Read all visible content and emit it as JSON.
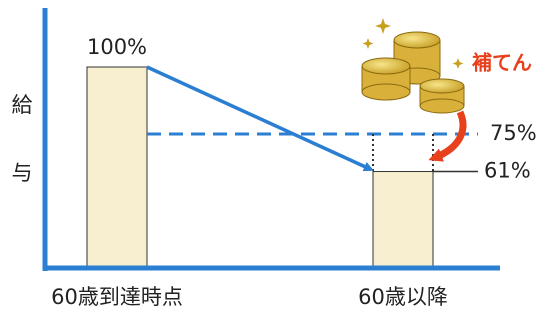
{
  "chart_data": {
    "type": "bar",
    "y_label": "給与",
    "categories": [
      "60歳到達時点",
      "60歳以降"
    ],
    "values": [
      100,
      61
    ],
    "value_labels": [
      "100%",
      "61%"
    ],
    "color": "#f7efcf",
    "axis_color": "#2b7fd2",
    "ylim": [
      25,
      100
    ],
    "reference_line": {
      "value": 75,
      "label": "75%"
    },
    "annotation": "補てん"
  }
}
